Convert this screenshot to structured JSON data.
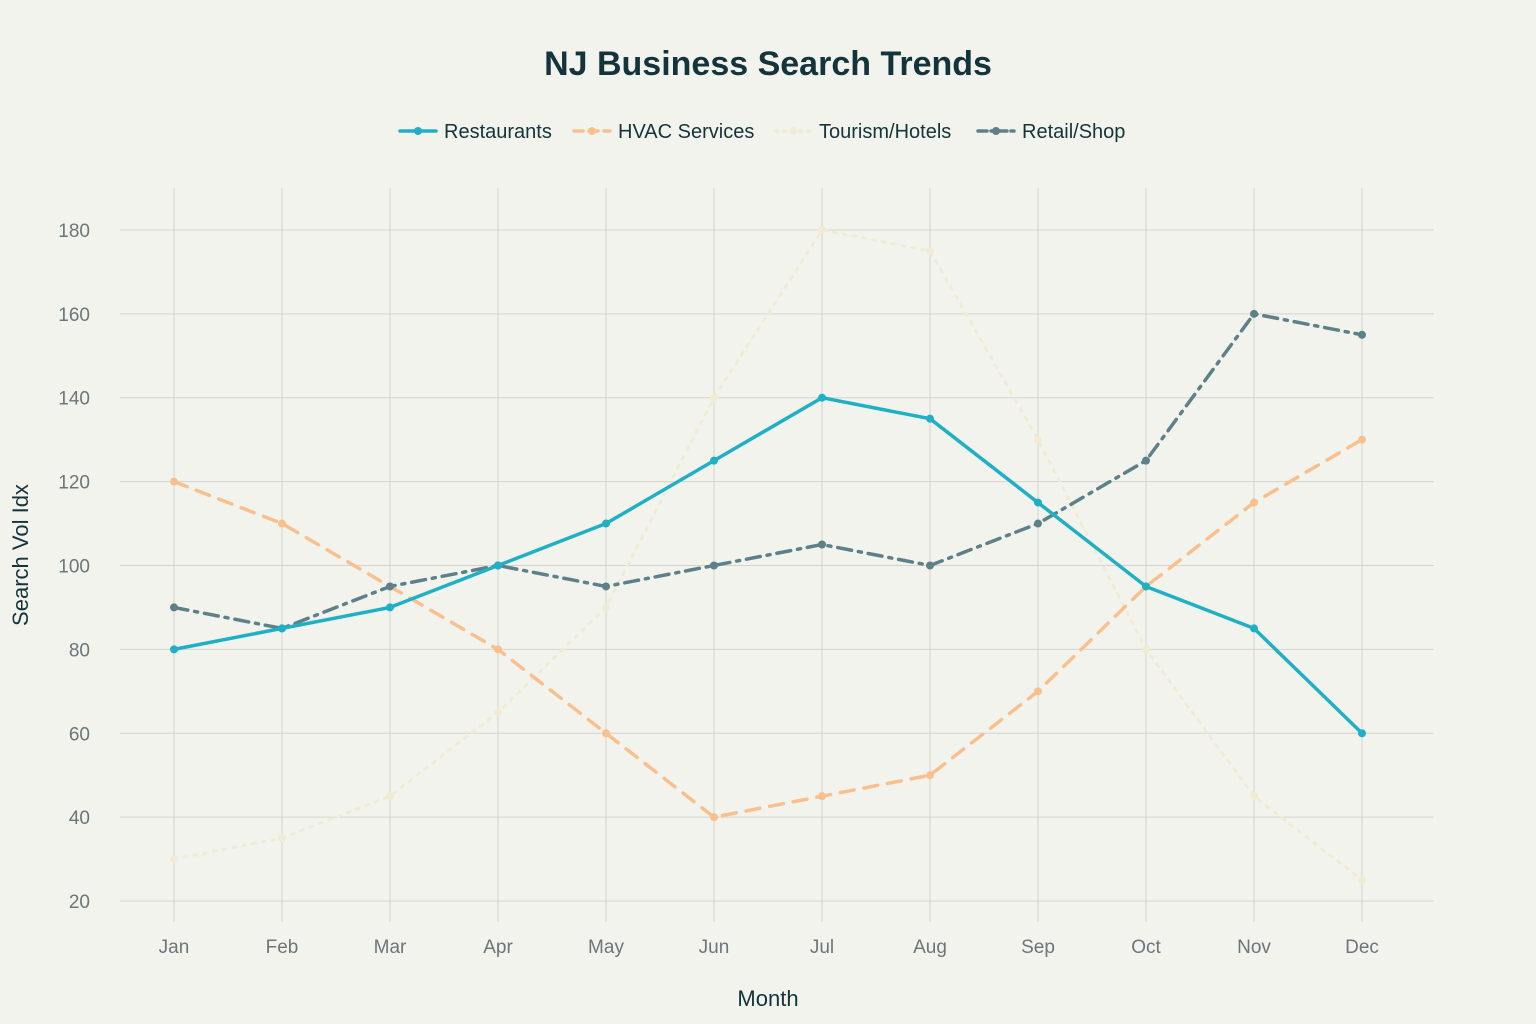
{
  "chart_data": {
    "type": "line",
    "title": "NJ Business Search Trends",
    "xlabel": "Month",
    "ylabel": "Search Vol Idx",
    "categories": [
      "Jan",
      "Feb",
      "Mar",
      "Apr",
      "May",
      "Jun",
      "Jul",
      "Aug",
      "Sep",
      "Oct",
      "Nov",
      "Dec"
    ],
    "ylim": [
      15,
      190
    ],
    "yticks": [
      20,
      40,
      60,
      80,
      100,
      120,
      140,
      160,
      180
    ],
    "grid": true,
    "legend_position": "top-center",
    "series": [
      {
        "name": "Restaurants",
        "color": "#1fb0c5",
        "dash": "solid",
        "values": [
          80,
          85,
          90,
          100,
          110,
          125,
          140,
          135,
          115,
          95,
          85,
          60
        ]
      },
      {
        "name": "HVAC Services",
        "color": "#f9c08e",
        "dash": "dash",
        "values": [
          120,
          110,
          95,
          80,
          60,
          40,
          45,
          50,
          70,
          95,
          115,
          130
        ]
      },
      {
        "name": "Tourism/Hotels",
        "color": "#f0ecd4",
        "dash": "dot",
        "values": [
          30,
          35,
          45,
          65,
          90,
          140,
          180,
          175,
          130,
          80,
          45,
          25
        ]
      },
      {
        "name": "Retail/Shop",
        "color": "#5d8089",
        "dash": "dashdot",
        "values": [
          90,
          85,
          95,
          100,
          95,
          100,
          105,
          100,
          110,
          125,
          160,
          155
        ]
      }
    ]
  }
}
